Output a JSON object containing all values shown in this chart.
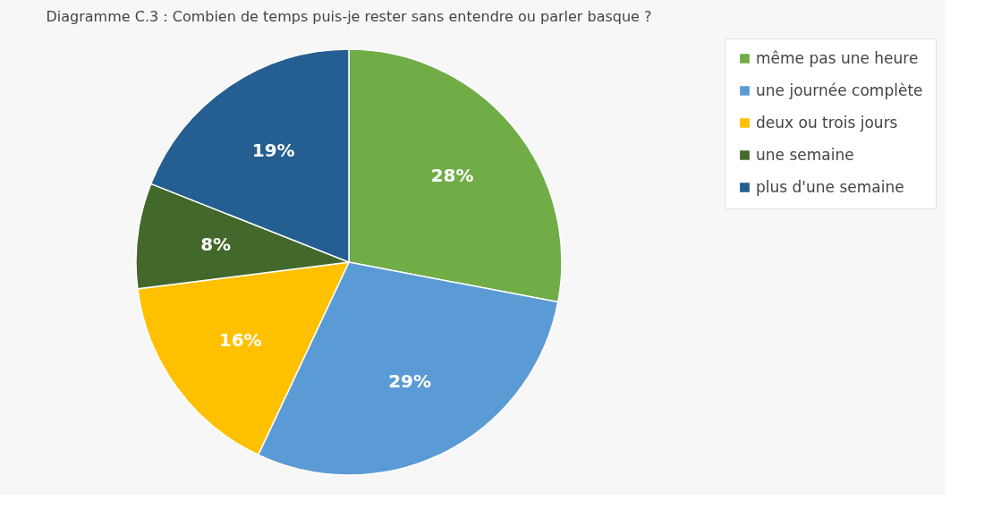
{
  "chart_data": {
    "type": "pie",
    "title": "Diagramme C.3 : Combien de temps puis-je rester sans entendre ou parler basque ?",
    "categories": [
      "même pas une heure",
      "une journée complète",
      "deux ou trois jours",
      "une semaine",
      "plus d'une semaine"
    ],
    "values": [
      28,
      29,
      16,
      8,
      19
    ],
    "value_labels": [
      "28%",
      "29%",
      "16%",
      "8%",
      "19%"
    ],
    "colors": [
      "#70ad47",
      "#5b9bd5",
      "#ffc000",
      "#43682b",
      "#255e91"
    ],
    "legend": "right"
  }
}
